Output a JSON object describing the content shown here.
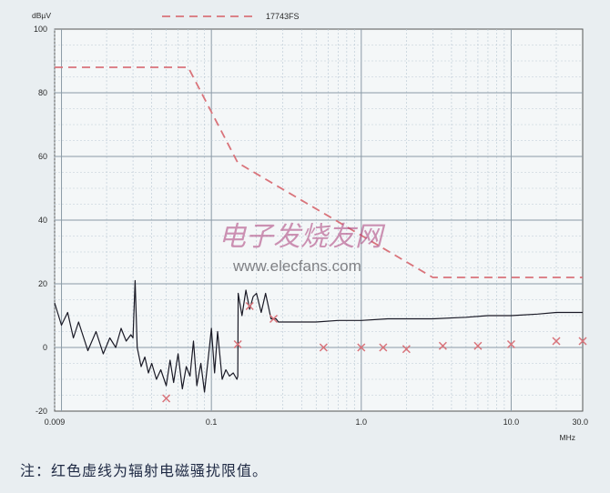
{
  "chart_data": {
    "type": "line",
    "title": "",
    "ylabel": "dBµV",
    "xlabel": "MHz",
    "xscale": "log",
    "xlim": [
      0.009,
      30.0
    ],
    "ylim": [
      -20,
      100
    ],
    "grid": true,
    "legend_position": "top",
    "x_tick_labels": [
      "0.009",
      "0.1",
      "1.0",
      "10.0",
      "30.0"
    ],
    "x_ticks": [
      0.009,
      0.1,
      1.0,
      10.0,
      30.0
    ],
    "y_ticks": [
      -20,
      0,
      20,
      40,
      60,
      80,
      100
    ],
    "series": [
      {
        "name": "17743FS",
        "style": "dashed",
        "color": "#d9737a",
        "x": [
          0.009,
          0.07,
          0.15,
          3.0,
          30.0
        ],
        "y": [
          88,
          88,
          58,
          22,
          22
        ]
      },
      {
        "name": "",
        "style": "solid",
        "color": "#1a1a26",
        "x": [
          0.009,
          0.01,
          0.011,
          0.012,
          0.013,
          0.015,
          0.017,
          0.019,
          0.021,
          0.023,
          0.025,
          0.027,
          0.029,
          0.03,
          0.031,
          0.032,
          0.034,
          0.036,
          0.038,
          0.04,
          0.043,
          0.046,
          0.05,
          0.053,
          0.056,
          0.06,
          0.064,
          0.068,
          0.072,
          0.076,
          0.08,
          0.085,
          0.09,
          0.095,
          0.1,
          0.105,
          0.11,
          0.118,
          0.125,
          0.132,
          0.14,
          0.148,
          0.15,
          0.151,
          0.16,
          0.17,
          0.18,
          0.19,
          0.2,
          0.215,
          0.23,
          0.25,
          0.27,
          0.28,
          0.3,
          0.4,
          0.5,
          0.7,
          1.0,
          1.5,
          2.0,
          3.0,
          5.0,
          7.0,
          10.0,
          15.0,
          20.0,
          30.0
        ],
        "y": [
          14,
          7,
          11,
          3,
          8,
          -1,
          5,
          -2,
          3,
          0,
          6,
          2,
          4,
          3,
          21,
          0,
          -6,
          -3,
          -8,
          -5,
          -10,
          -7,
          -12,
          -4,
          -11,
          -2,
          -13,
          -6,
          -9,
          2,
          -12,
          -5,
          -14,
          -4,
          6,
          -8,
          5,
          -10,
          -7,
          -9,
          -8,
          -10,
          -9,
          17,
          10,
          18,
          12,
          16,
          17,
          11,
          17,
          9,
          9,
          8,
          8,
          8,
          8,
          8.5,
          8.5,
          9,
          9,
          9,
          9.5,
          10,
          10,
          10.5,
          11,
          11
        ]
      },
      {
        "name": "",
        "style": "markers",
        "color": "#d9737a",
        "x": [
          0.05,
          0.15,
          0.18,
          0.26,
          0.56,
          1.0,
          1.4,
          2.0,
          3.5,
          6.0,
          10.0,
          20.0,
          30.0
        ],
        "y": [
          -16,
          1,
          13,
          9,
          0,
          0,
          0,
          -0.5,
          0.5,
          0.5,
          1,
          2,
          2
        ]
      }
    ]
  },
  "watermark": {
    "cn": "电子发烧友网",
    "en": "www.elecfans.com"
  },
  "caption": "注：红色虚线为辐射电磁骚扰限值。"
}
